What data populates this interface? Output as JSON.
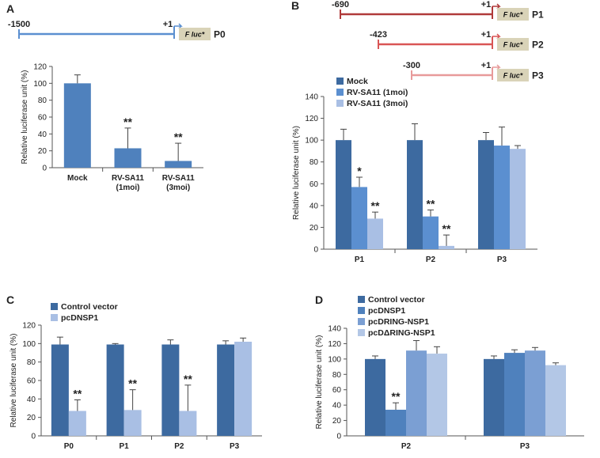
{
  "panels": [
    {
      "label": "A",
      "promoters": [
        {
          "start": "-1500",
          "tss": "+1",
          "gene": "F luc*",
          "name": "P0",
          "color": "#5b8fd0"
        }
      ],
      "chart_data": {
        "type": "bar",
        "ylabel": "Relative luciferase unit (%)",
        "ylim": [
          0,
          120
        ],
        "yticks": [
          0,
          20,
          40,
          60,
          80,
          100,
          120
        ],
        "categories": [
          "Mock",
          "RV-SA11 (1moi)",
          "RV-SA11 (3moi)"
        ],
        "category_lines": [
          [
            "Mock"
          ],
          [
            "RV-SA11",
            "(1moi)"
          ],
          [
            "RV-SA11",
            "(3moi)"
          ]
        ],
        "series": [
          {
            "name": "",
            "color": "#4f81bd",
            "values": [
              100,
              23,
              8
            ],
            "errors": [
              10,
              24,
              21
            ],
            "stars": [
              "",
              "**",
              "**"
            ]
          }
        ]
      }
    },
    {
      "label": "B",
      "promoters": [
        {
          "start": "-690",
          "tss": "+1",
          "gene": "F luc*",
          "name": "P1",
          "color": "#b03a3a"
        },
        {
          "start": "-423",
          "tss": "+1",
          "gene": "F luc*",
          "name": "P2",
          "color": "#d95555"
        },
        {
          "start": "-300",
          "tss": "+1",
          "gene": "F luc*",
          "name": "P3",
          "color": "#e89a9a"
        }
      ],
      "chart_data": {
        "type": "bar",
        "ylabel": "Relative luciferase unit (%)",
        "ylim": [
          0,
          140
        ],
        "yticks": [
          0,
          20,
          40,
          60,
          80,
          100,
          120,
          140
        ],
        "categories": [
          "P1",
          "P2",
          "P3"
        ],
        "series": [
          {
            "name": "Mock",
            "color": "#3d6aa0",
            "values": [
              100,
              100,
              100
            ],
            "errors": [
              10,
              15,
              7
            ],
            "stars": [
              "",
              "",
              ""
            ]
          },
          {
            "name": "RV-SA11 (1moi)",
            "color": "#5b8fd0",
            "values": [
              57,
              30,
              95
            ],
            "errors": [
              9,
              6,
              17
            ],
            "stars": [
              "*",
              "**",
              ""
            ]
          },
          {
            "name": "RV-SA11 (3moi)",
            "color": "#a9bfe4",
            "values": [
              28,
              3,
              92
            ],
            "errors": [
              6,
              10,
              3
            ],
            "stars": [
              "**",
              "**",
              ""
            ]
          }
        ]
      }
    },
    {
      "label": "C",
      "promoters": [],
      "chart_data": {
        "type": "bar",
        "ylabel": "Relative luciferase unit (%)",
        "ylim": [
          0,
          120
        ],
        "yticks": [
          0,
          20,
          40,
          60,
          80,
          100,
          120
        ],
        "categories": [
          "P0",
          "P1",
          "P2",
          "P3"
        ],
        "series": [
          {
            "name": "Control vector",
            "color": "#3d6aa0",
            "values": [
              99,
              99,
              99,
              99
            ],
            "errors": [
              8,
              1,
              5,
              4
            ],
            "stars": [
              "",
              "",
              "",
              ""
            ]
          },
          {
            "name": "pcDNSP1",
            "color": "#a9bfe4",
            "values": [
              27,
              28,
              27,
              102
            ],
            "errors": [
              12,
              22,
              28,
              4
            ],
            "stars": [
              "**",
              "**",
              "**",
              ""
            ]
          }
        ]
      }
    },
    {
      "label": "D",
      "promoters": [],
      "chart_data": {
        "type": "bar",
        "ylabel": "Relative luciferase unit (%)",
        "ylim": [
          0,
          140
        ],
        "yticks": [
          0,
          20,
          40,
          60,
          80,
          100,
          120,
          140
        ],
        "categories": [
          "P2",
          "P3"
        ],
        "series": [
          {
            "name": "Control vector",
            "color": "#3d6aa0",
            "values": [
              100,
              100
            ],
            "errors": [
              4,
              4
            ],
            "stars": [
              "",
              ""
            ]
          },
          {
            "name": "pcDNSP1",
            "color": "#4f81bd",
            "values": [
              34,
              108
            ],
            "errors": [
              9,
              4
            ],
            "stars": [
              "**",
              ""
            ]
          },
          {
            "name": "pcDRING-NSP1",
            "color": "#7b9fd3",
            "values": [
              111,
              111
            ],
            "errors": [
              13,
              4
            ],
            "stars": [
              "",
              ""
            ]
          },
          {
            "name": "pcDΔRING-NSP1",
            "color": "#b3c7e6",
            "values": [
              107,
              92
            ],
            "errors": [
              9,
              3
            ],
            "stars": [
              "",
              ""
            ]
          }
        ]
      }
    }
  ]
}
